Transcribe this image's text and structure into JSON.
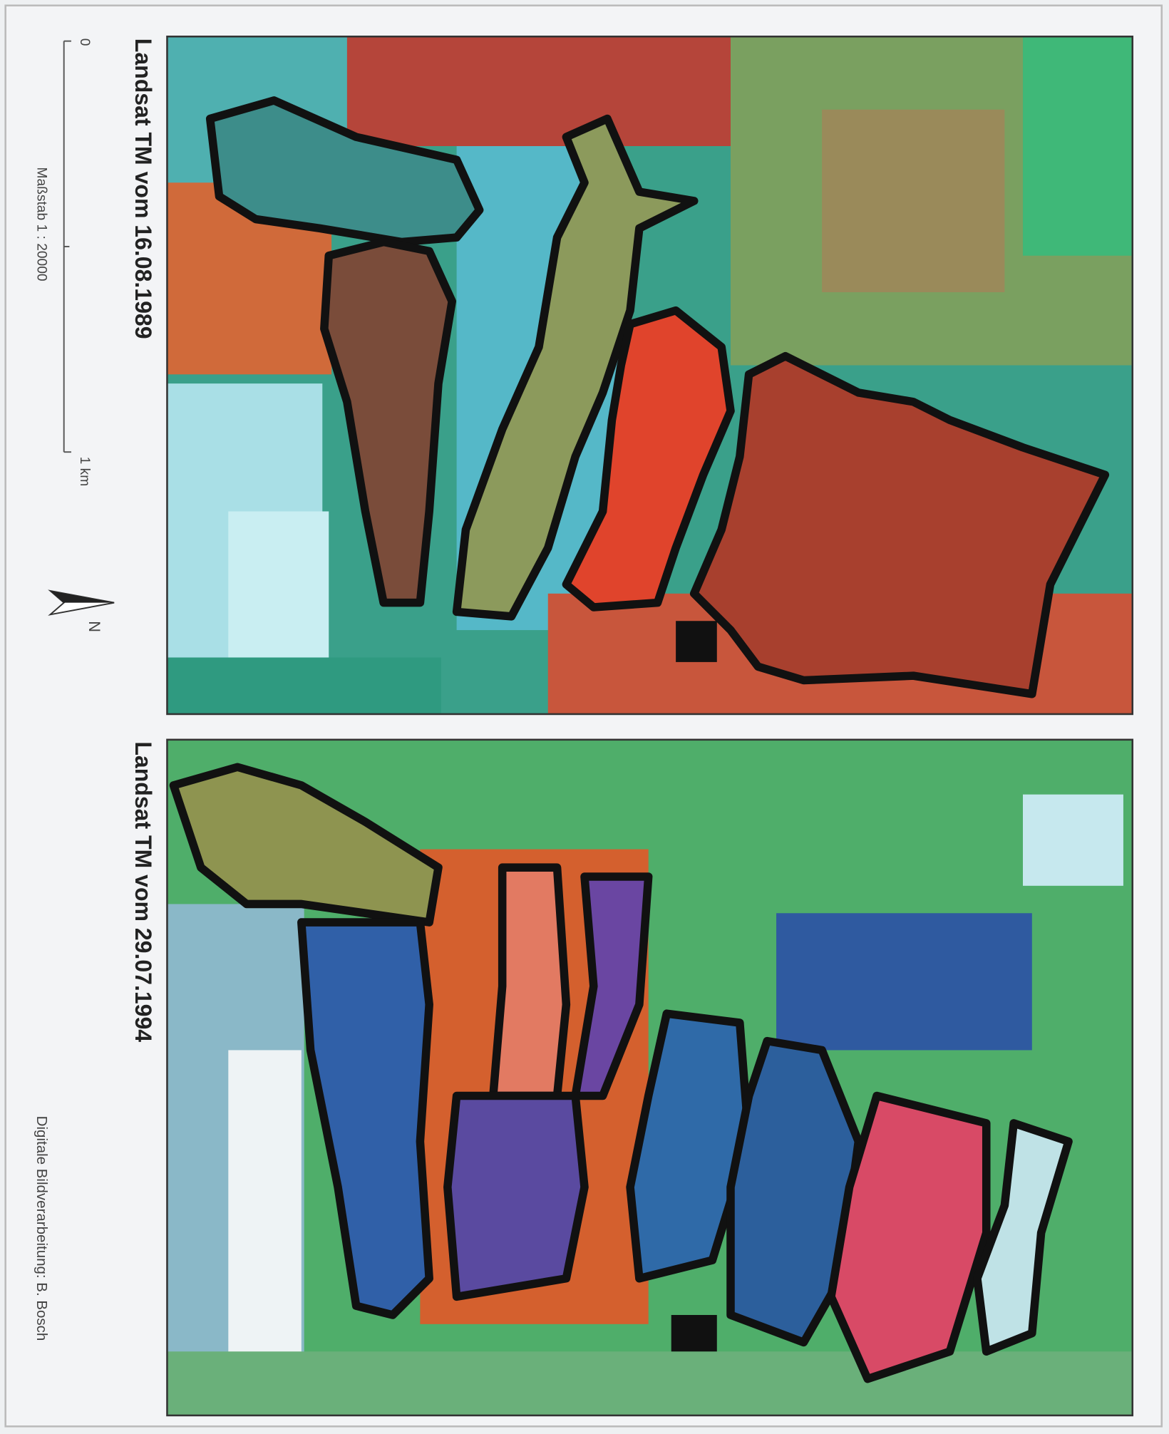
{
  "panels": [
    {
      "title": "Landsat TM vom 16.08.1989"
    },
    {
      "title": "Landsat TM vom 29.07.1994"
    }
  ],
  "scale": {
    "label": "Maßstab 1 : 20000",
    "start": "0",
    "end": "1 km"
  },
  "north": "N",
  "credit": "Digitale Bildverarbeitung: B. Bosch"
}
